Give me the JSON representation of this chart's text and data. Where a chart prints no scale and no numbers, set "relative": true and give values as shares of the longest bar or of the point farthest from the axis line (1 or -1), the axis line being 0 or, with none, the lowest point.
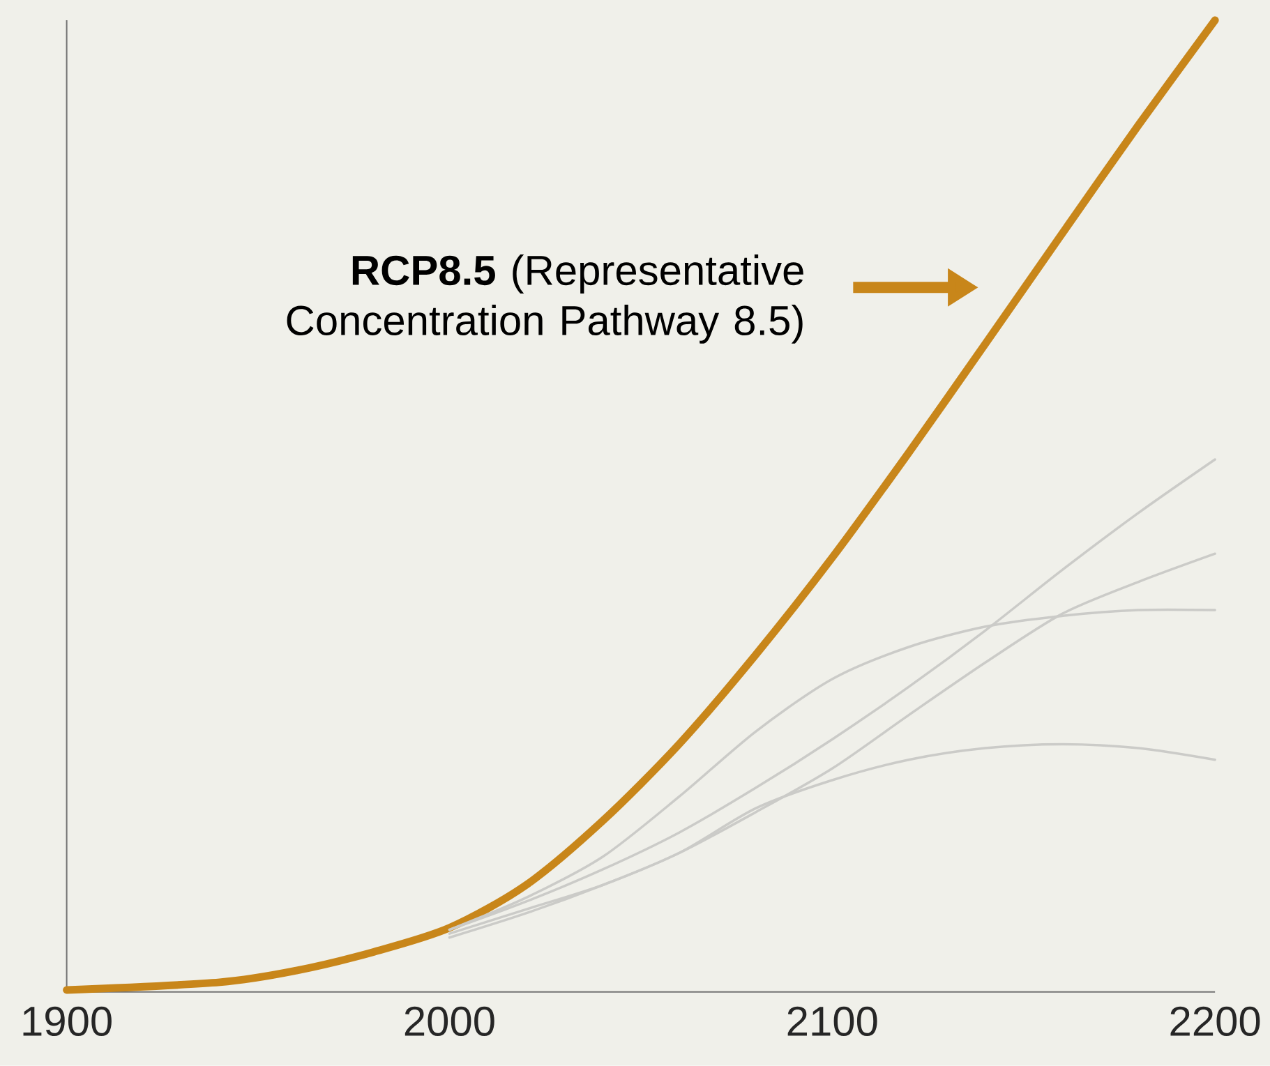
{
  "chart_data": {
    "type": "line",
    "relative": true,
    "xlim": [
      1900,
      2200
    ],
    "xticks": [
      1900,
      2000,
      2100,
      2200
    ],
    "grid": false,
    "marker": "none",
    "line_style": "solid",
    "annotations": [
      "**RCP8.5** (Representative Concentration Pathway 8.5)"
    ],
    "series": [
      {
        "color": "#c8861a",
        "x": [
          1900,
          1940,
          1960,
          1980,
          2000,
          2020,
          2040,
          2060,
          2080,
          2100,
          2120,
          2140,
          2160,
          2180,
          2200
        ],
        "values": [
          0.002,
          0.01,
          0.022,
          0.041,
          0.066,
          0.11,
          0.176,
          0.255,
          0.347,
          0.447,
          0.555,
          0.667,
          0.78,
          0.892,
          1.0
        ]
      },
      {
        "color": "#cbcbc8",
        "x": [
          2000,
          2020,
          2040,
          2060,
          2080,
          2100,
          2120,
          2140,
          2160,
          2180,
          2200
        ],
        "values": [
          0.064,
          0.093,
          0.126,
          0.164,
          0.21,
          0.26,
          0.314,
          0.372,
          0.434,
          0.493,
          0.548
        ]
      },
      {
        "color": "#cbcbc8",
        "x": [
          2000,
          2020,
          2040,
          2060,
          2080,
          2100,
          2120,
          2140,
          2160,
          2180,
          2200
        ],
        "values": [
          0.06,
          0.085,
          0.11,
          0.143,
          0.185,
          0.23,
          0.285,
          0.339,
          0.389,
          0.422,
          0.451
        ]
      },
      {
        "color": "#cbcbc8",
        "x": [
          2000,
          2020,
          2040,
          2060,
          2080,
          2100,
          2120,
          2140,
          2160,
          2180,
          2200
        ],
        "values": [
          0.064,
          0.097,
          0.139,
          0.201,
          0.268,
          0.322,
          0.355,
          0.376,
          0.387,
          0.393,
          0.393
        ]
      },
      {
        "color": "#cbcbc8",
        "x": [
          2000,
          2020,
          2040,
          2060,
          2080,
          2100,
          2120,
          2140,
          2160,
          2180,
          2200
        ],
        "values": [
          0.056,
          0.081,
          0.11,
          0.143,
          0.189,
          0.218,
          0.239,
          0.251,
          0.255,
          0.251,
          0.239
        ]
      }
    ]
  }
}
